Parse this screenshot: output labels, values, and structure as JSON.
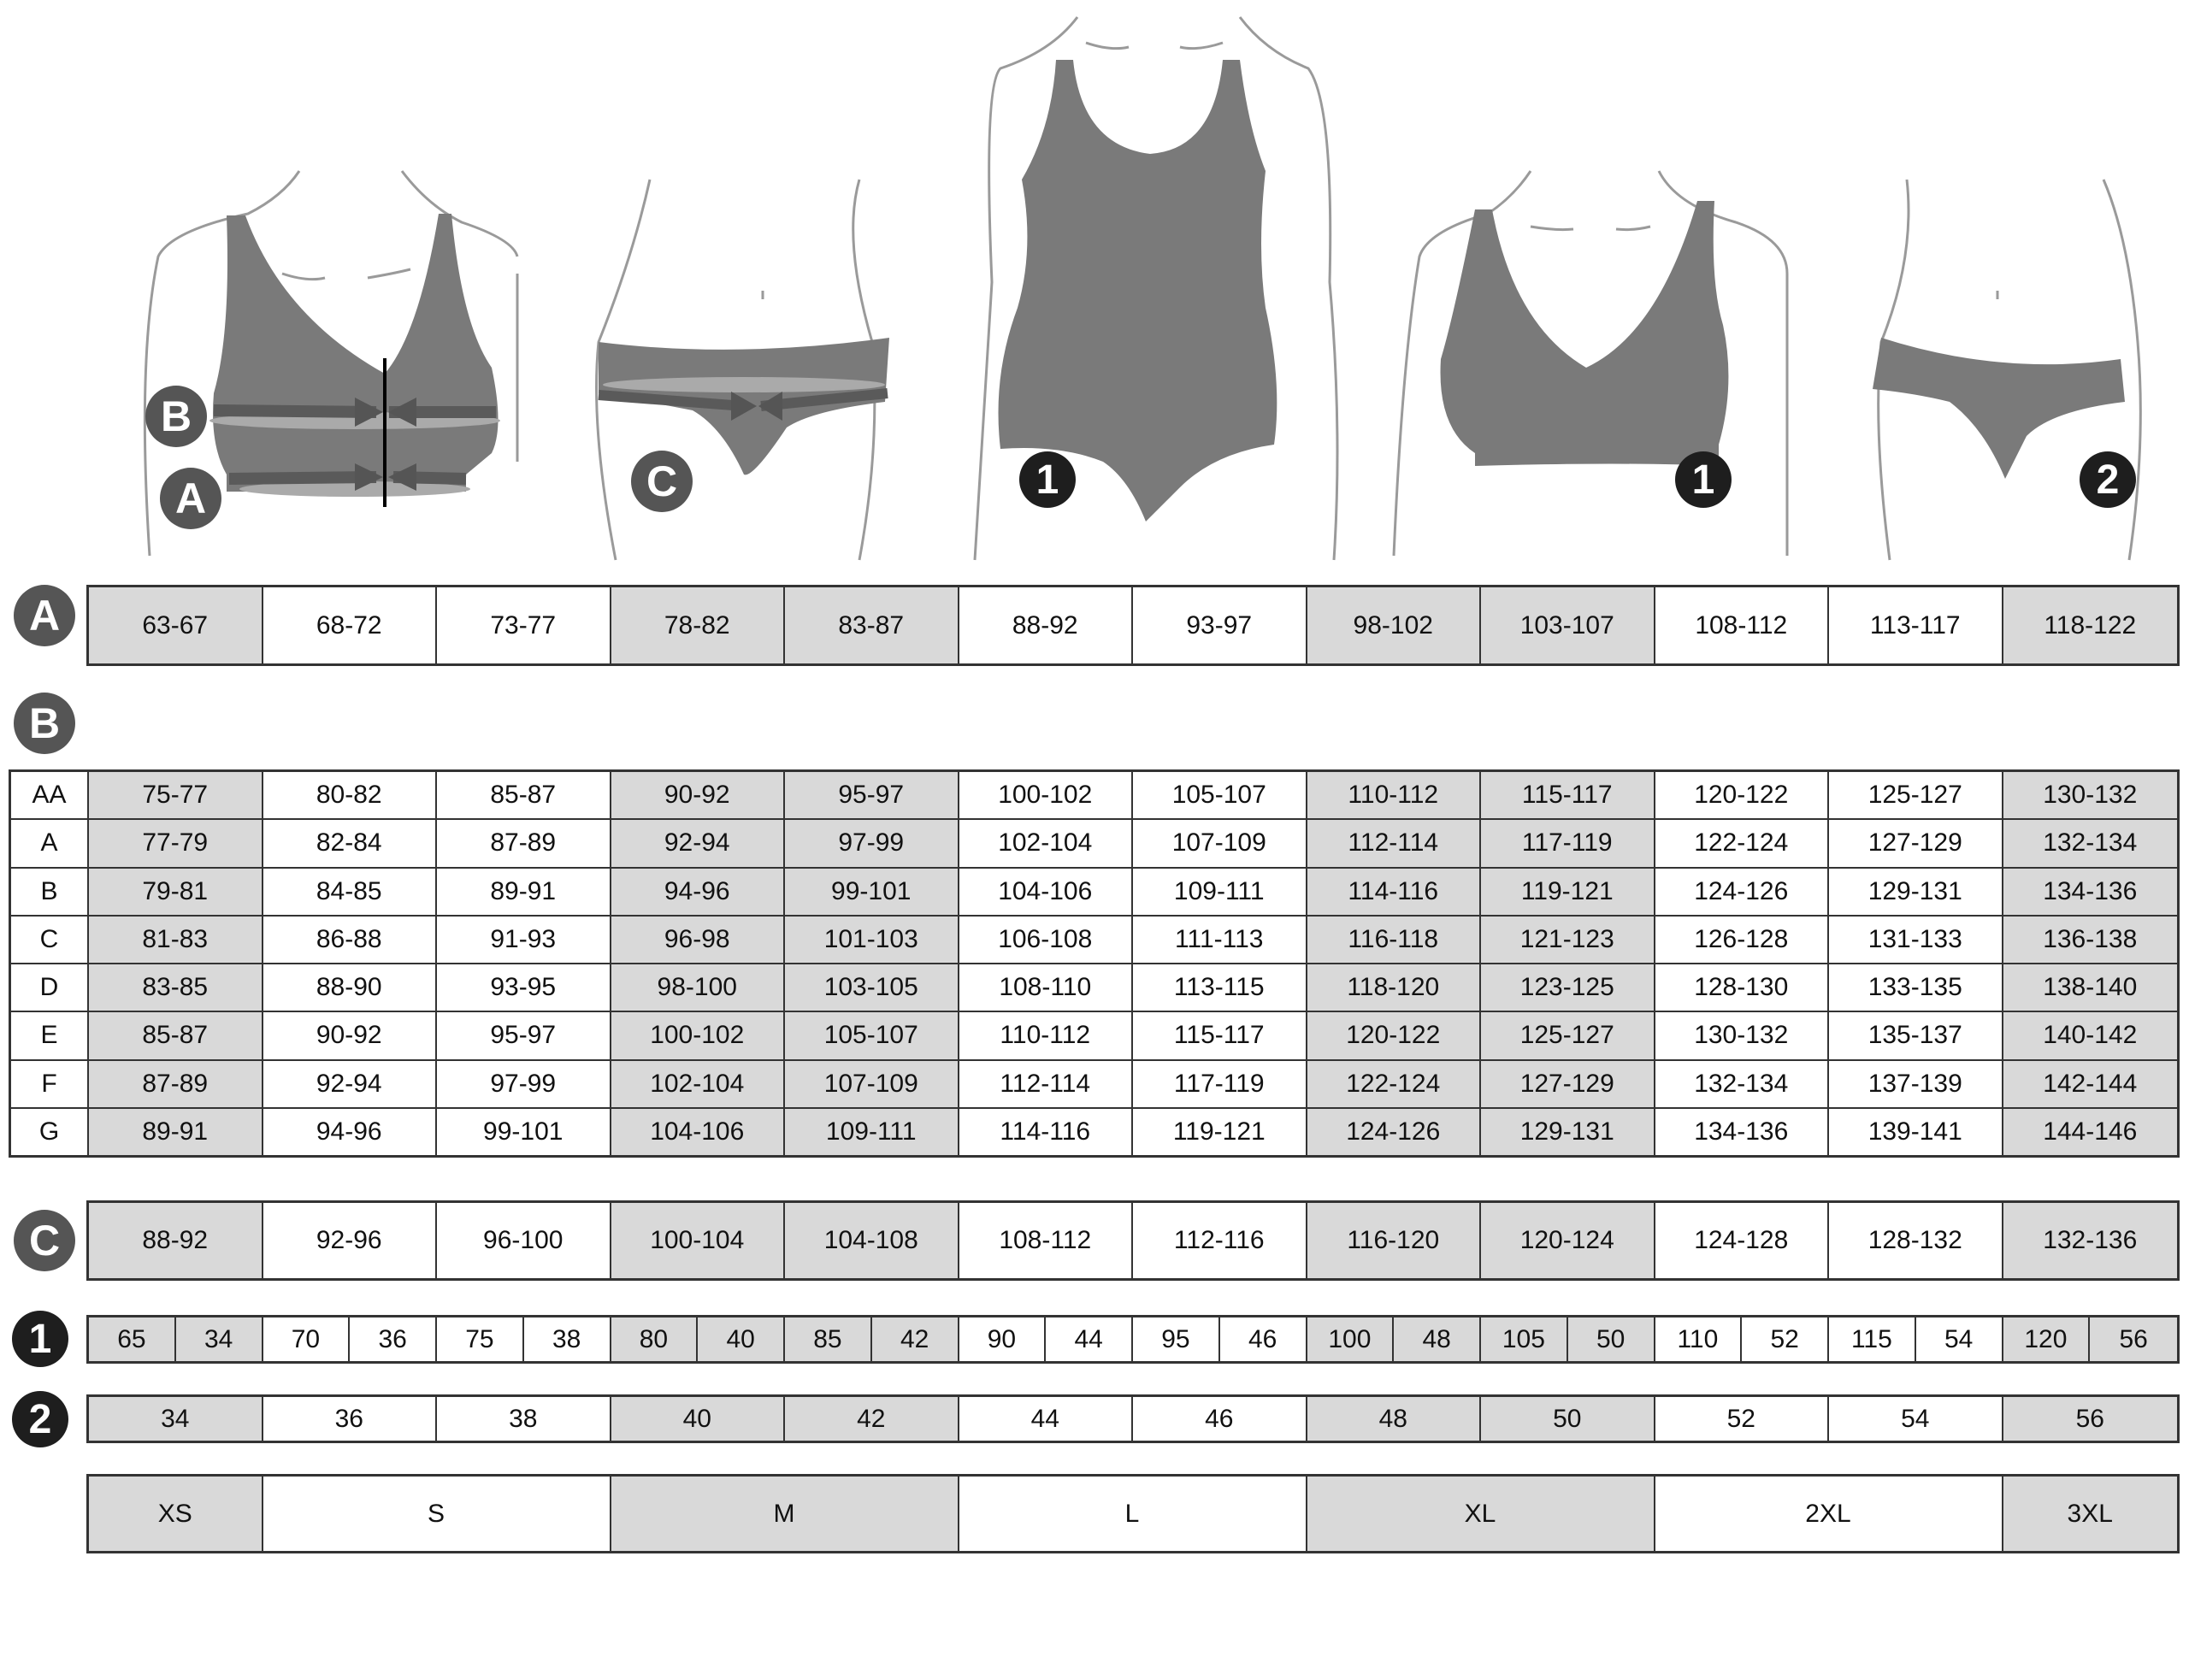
{
  "colors": {
    "shaded_cell": "#d9d9d9",
    "garment": "#7a7a7a",
    "badge_letter": "#555555",
    "badge_number": "#1e1e1e"
  },
  "figure_badges": {
    "bra_under": "A",
    "bra_bust": "B",
    "brief_hip": "C",
    "bodysuit": "1",
    "bra2": "1",
    "brief2": "2"
  },
  "table_a": {
    "badge": "A",
    "values": [
      "63-67",
      "68-72",
      "73-77",
      "78-82",
      "83-87",
      "88-92",
      "93-97",
      "98-102",
      "103-107",
      "108-112",
      "113-117",
      "118-122"
    ]
  },
  "table_b": {
    "badge": "B",
    "rows": [
      {
        "cup": "AA",
        "values": [
          "75-77",
          "80-82",
          "85-87",
          "90-92",
          "95-97",
          "100-102",
          "105-107",
          "110-112",
          "115-117",
          "120-122",
          "125-127",
          "130-132"
        ]
      },
      {
        "cup": "A",
        "values": [
          "77-79",
          "82-84",
          "87-89",
          "92-94",
          "97-99",
          "102-104",
          "107-109",
          "112-114",
          "117-119",
          "122-124",
          "127-129",
          "132-134"
        ]
      },
      {
        "cup": "B",
        "values": [
          "79-81",
          "84-85",
          "89-91",
          "94-96",
          "99-101",
          "104-106",
          "109-111",
          "114-116",
          "119-121",
          "124-126",
          "129-131",
          "134-136"
        ]
      },
      {
        "cup": "C",
        "values": [
          "81-83",
          "86-88",
          "91-93",
          "96-98",
          "101-103",
          "106-108",
          "111-113",
          "116-118",
          "121-123",
          "126-128",
          "131-133",
          "136-138"
        ]
      },
      {
        "cup": "D",
        "values": [
          "83-85",
          "88-90",
          "93-95",
          "98-100",
          "103-105",
          "108-110",
          "113-115",
          "118-120",
          "123-125",
          "128-130",
          "133-135",
          "138-140"
        ]
      },
      {
        "cup": "E",
        "values": [
          "85-87",
          "90-92",
          "95-97",
          "100-102",
          "105-107",
          "110-112",
          "115-117",
          "120-122",
          "125-127",
          "130-132",
          "135-137",
          "140-142"
        ]
      },
      {
        "cup": "F",
        "values": [
          "87-89",
          "92-94",
          "97-99",
          "102-104",
          "107-109",
          "112-114",
          "117-119",
          "122-124",
          "127-129",
          "132-134",
          "137-139",
          "142-144"
        ]
      },
      {
        "cup": "G",
        "values": [
          "89-91",
          "94-96",
          "99-101",
          "104-106",
          "109-111",
          "114-116",
          "119-121",
          "124-126",
          "129-131",
          "134-136",
          "139-141",
          "144-146"
        ]
      }
    ]
  },
  "table_c": {
    "badge": "C",
    "values": [
      "88-92",
      "92-96",
      "96-100",
      "100-104",
      "104-108",
      "108-112",
      "112-116",
      "116-120",
      "120-124",
      "124-128",
      "128-132",
      "132-136"
    ]
  },
  "table_1": {
    "badge": "1",
    "values": [
      "65",
      "34",
      "70",
      "36",
      "75",
      "38",
      "80",
      "40",
      "85",
      "42",
      "90",
      "44",
      "95",
      "46",
      "100",
      "48",
      "105",
      "50",
      "110",
      "52",
      "115",
      "54",
      "120",
      "56"
    ]
  },
  "table_2": {
    "badge": "2",
    "values": [
      "34",
      "36",
      "38",
      "40",
      "42",
      "44",
      "46",
      "48",
      "50",
      "52",
      "54",
      "56"
    ]
  },
  "sizes": {
    "values": [
      "XS",
      "S",
      "M",
      "L",
      "XL",
      "2XL",
      "3XL"
    ]
  }
}
